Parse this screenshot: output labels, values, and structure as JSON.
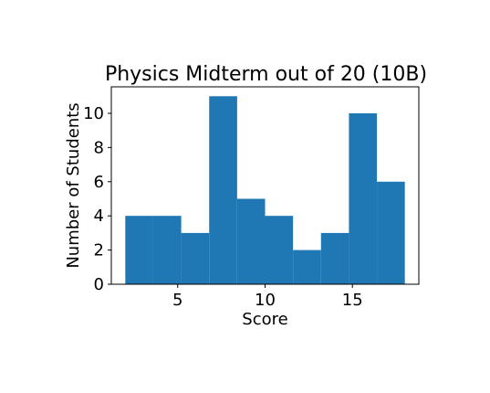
{
  "chart_data": {
    "type": "bar",
    "title": "Physics Midterm out of 20 (10B)",
    "xlabel": "Score",
    "ylabel": "Number of Students",
    "xlim": [
      1.2,
      18.8
    ],
    "ylim": [
      0,
      11.55
    ],
    "xticks": [
      5,
      10,
      15
    ],
    "yticks": [
      0,
      2,
      4,
      6,
      8,
      10
    ],
    "bin_edges": [
      2.0,
      3.6,
      5.2,
      6.8,
      8.4,
      10.0,
      11.6,
      13.2,
      14.8,
      16.4,
      18.0
    ],
    "values": [
      4,
      4,
      3,
      11,
      5,
      4,
      2,
      3,
      10,
      6
    ],
    "grid": false,
    "bar_color": "#1f77b4"
  }
}
